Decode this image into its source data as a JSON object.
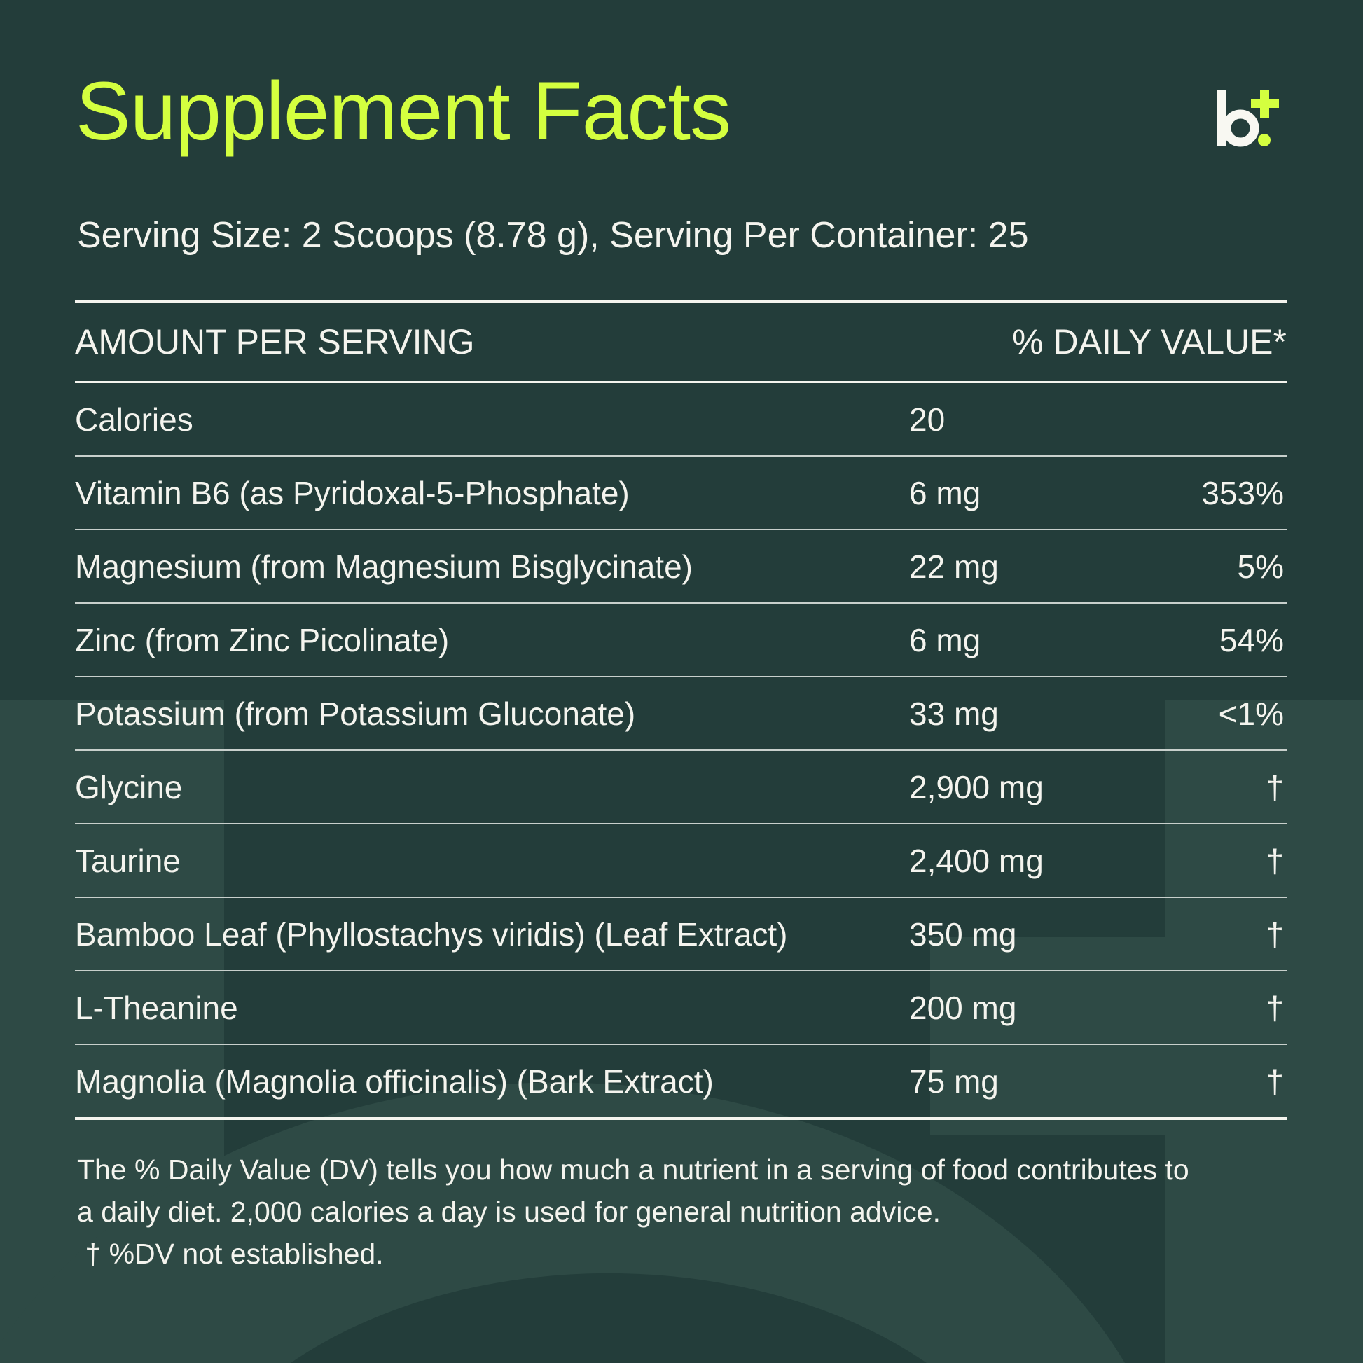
{
  "title": "Supplement Facts",
  "logo": {
    "text": "b+",
    "letter_color": "#f8f8f2",
    "accent_color": "#d4ff3f"
  },
  "serving": "Serving Size: 2 Scoops (8.78 g), Serving Per Container: 25",
  "table": {
    "header": {
      "amount": "AMOUNT PER SERVING",
      "dv": "% DAILY VALUE*"
    },
    "rows": [
      {
        "name": "Calories",
        "amount": "20",
        "dv": ""
      },
      {
        "name": "Vitamin B6 (as Pyridoxal-5-Phosphate)",
        "amount": "6 mg",
        "dv": "353%"
      },
      {
        "name": "Magnesium (from Magnesium Bisglycinate)",
        "amount": "22 mg",
        "dv": "5%"
      },
      {
        "name": "Zinc (from Zinc Picolinate)",
        "amount": "6 mg",
        "dv": "54%"
      },
      {
        "name": "Potassium (from Potassium Gluconate)",
        "amount": "33 mg",
        "dv": "<1%"
      },
      {
        "name": "Glycine",
        "amount": "2,900 mg",
        "dv": "†"
      },
      {
        "name": "Taurine",
        "amount": "2,400 mg",
        "dv": "†"
      },
      {
        "name": "Bamboo Leaf (Phyllostachys viridis) (Leaf Extract)",
        "amount": "350 mg",
        "dv": "†"
      },
      {
        "name": "L-Theanine",
        "amount": "200 mg",
        "dv": "†"
      },
      {
        "name": "Magnolia (Magnolia officinalis) (Bark Extract)",
        "amount": "75 mg",
        "dv": "†"
      }
    ]
  },
  "footer": {
    "line1": "The % Daily Value (DV) tells you how much a nutrient in a serving of food contributes to",
    "line2": "a daily diet. 2,000 calories a day is used for general nutrition advice.",
    "line3": " † %DV not established."
  },
  "colors": {
    "background": "#233d3a",
    "watermark": "#2e4a45",
    "accent": "#d4ff3f",
    "text": "#f4f4ee"
  }
}
